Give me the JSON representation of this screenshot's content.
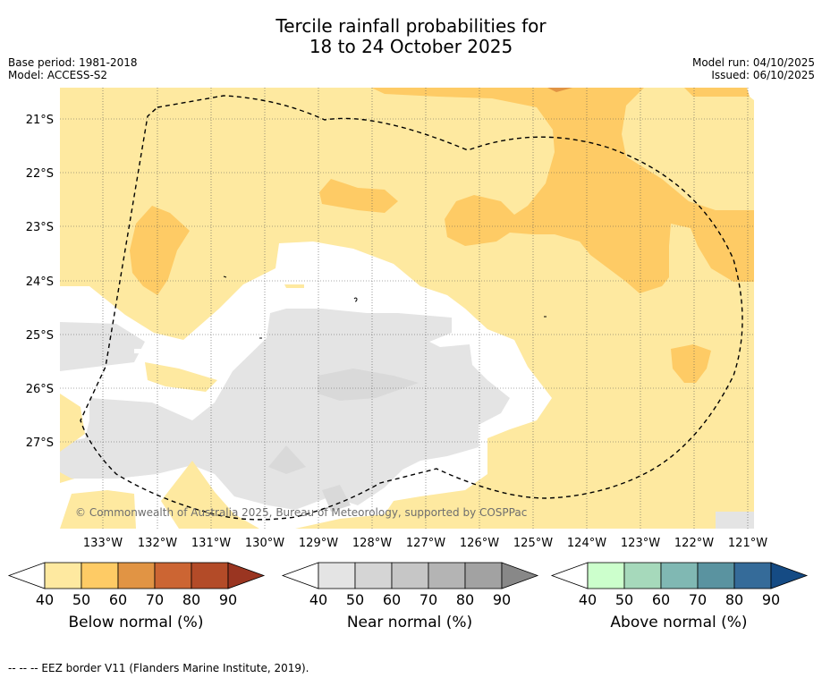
{
  "title": {
    "line1": "Tercile rainfall probabilities for",
    "line2": "18 to 24 October 2025"
  },
  "meta": {
    "base_period": "Base period: 1981-2018",
    "model": "Model: ACCESS-S2",
    "model_run": "Model run: 04/10/2025",
    "issued": "Issued: 06/10/2025"
  },
  "map": {
    "lat_labels": [
      "21°S",
      "22°S",
      "23°S",
      "24°S",
      "25°S",
      "26°S",
      "27°S"
    ],
    "lon_labels": [
      "133°W",
      "132°W",
      "131°W",
      "130°W",
      "129°W",
      "128°W",
      "127°W",
      "126°W",
      "125°W",
      "124°W",
      "123°W",
      "122°W",
      "121°W"
    ],
    "copyright": "© Commonwealth of Australia 2025, Bureau of Meteorology, supported by COSPPac",
    "colors": {
      "below_40": "#fee9a0",
      "below_50": "#fecb65",
      "below_60": "#e19444",
      "neutral": "#ffffff",
      "near_40": "#e4e4e4"
    }
  },
  "colorbars": [
    {
      "label": "Below normal (%)",
      "ticks": [
        "40",
        "50",
        "60",
        "70",
        "80",
        "90"
      ],
      "colors": [
        "#fee9a0",
        "#fecb65",
        "#e19444",
        "#cc6533",
        "#b34b28",
        "#9a3521"
      ]
    },
    {
      "label": "Near normal (%)",
      "ticks": [
        "40",
        "50",
        "60",
        "70",
        "80",
        "90"
      ],
      "colors": [
        "#e4e4e4",
        "#d5d5d5",
        "#c6c6c6",
        "#b4b4b4",
        "#a2a2a2",
        "#888888"
      ]
    },
    {
      "label": "Above normal (%)",
      "ticks": [
        "40",
        "50",
        "60",
        "70",
        "80",
        "90"
      ],
      "colors": [
        "#ccffcc",
        "#a6d9bb",
        "#80b8b3",
        "#5a93a0",
        "#356b99",
        "#154b84"
      ]
    }
  ],
  "footnote": "--  --  -- EEZ border V11 (Flanders Marine Institute, 2019)."
}
